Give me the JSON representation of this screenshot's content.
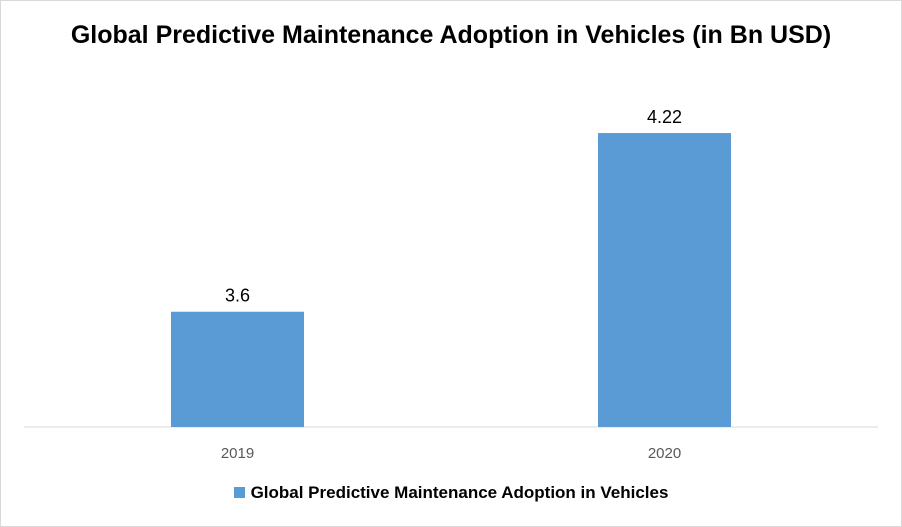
{
  "chart_data": {
    "type": "bar",
    "title": "Global Predictive Maintenance Adoption in Vehicles (in Bn USD)",
    "categories": [
      "2019",
      "2020"
    ],
    "series": [
      {
        "name": "Global Predictive Maintenance Adoption in Vehicles",
        "values": [
          3.6,
          4.22
        ],
        "color": "#5B9BD5"
      }
    ],
    "data_labels": [
      "3.6",
      "4.22"
    ],
    "xlabel": "",
    "ylabel": "",
    "ylim": [
      3.2,
      4.3
    ],
    "grid": false,
    "legend_position": "bottom"
  }
}
